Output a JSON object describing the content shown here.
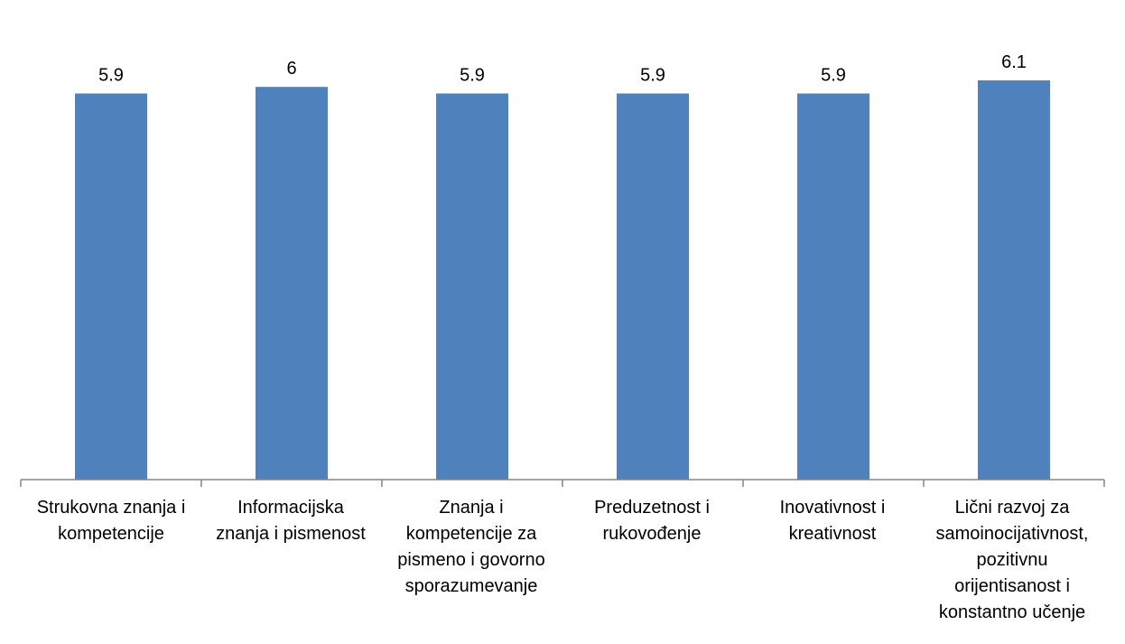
{
  "chart_data": {
    "type": "bar",
    "categories": [
      "Strukovna znanja i\nkompetencije",
      "Informacijska\nznanja i pismenost",
      "Znanja i\nkompetencije za\npismeno i govorno\nsporazumevanje",
      "Preduzetnost i\nrukovođenje",
      "Inovativnost i\nkreativnost",
      "Lični razvoj za\nsamoinocijativnost,\npozitivnu\norijentisanost i\nkonstantno učenje"
    ],
    "values": [
      5.9,
      6,
      5.9,
      5.9,
      5.9,
      6.1
    ],
    "data_labels": [
      "5.9",
      "6",
      "5.9",
      "5.9",
      "5.9",
      "6.1"
    ],
    "title": "",
    "xlabel": "",
    "ylabel": "",
    "ylim": [
      0,
      6.1
    ],
    "grid": false,
    "legend": "none",
    "bar_color": "#4F81BD",
    "axis_color": "#868686"
  }
}
